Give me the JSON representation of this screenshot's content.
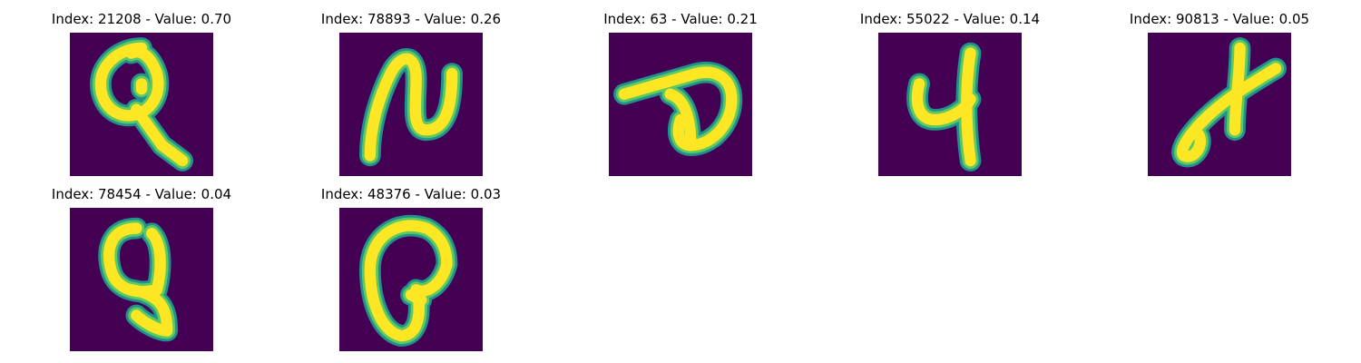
{
  "colors": {
    "background": "#440154",
    "stroke_core": "#fde725",
    "stroke_mid": "#5ec962",
    "stroke_edge": "#21918c"
  },
  "panels": [
    {
      "title": "Index: 21208 - Value: 0.70"
    },
    {
      "title": "Index: 78893 - Value: 0.26"
    },
    {
      "title": "Index: 63 - Value: 0.21"
    },
    {
      "title": "Index: 55022 - Value: 0.14"
    },
    {
      "title": "Index: 90813 - Value: 0.05"
    },
    {
      "title": "Index: 78454 - Value: 0.04"
    },
    {
      "title": "Index: 48376 - Value: 0.03"
    }
  ]
}
